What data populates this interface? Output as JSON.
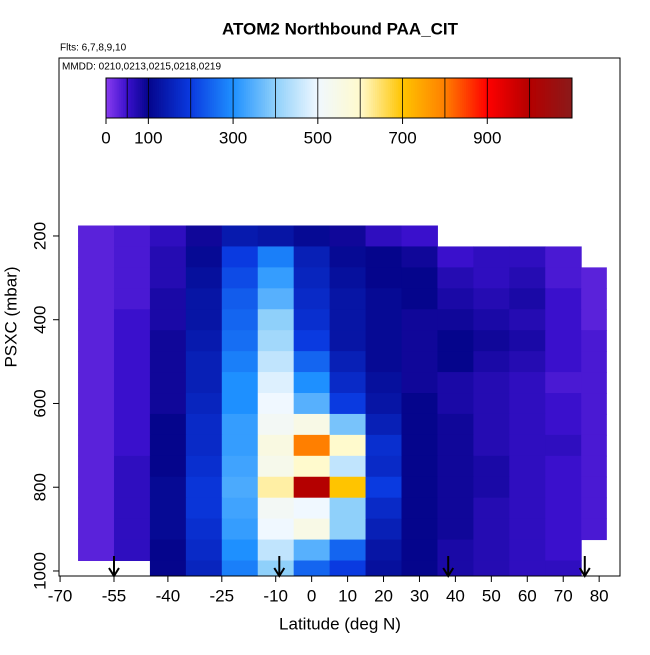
{
  "chart_data": {
    "type": "heatmap",
    "title": "ATOM2 Northbound PAA_CIT",
    "subtitle": "Flts: 6,7,8,9,10",
    "annotation": "MMDD: 0210,0213,0215,0218,0219",
    "xlabel": "Latitude (deg N)",
    "ylabel": "PSXC (mbar)",
    "xlim": [
      -70.3,
      85.8
    ],
    "ylim": [
      -225,
      1012
    ],
    "xticks": [
      -70,
      -55,
      -40,
      -25,
      -10,
      0,
      10,
      20,
      30,
      40,
      50,
      60,
      70,
      80
    ],
    "yticks": [
      200,
      400,
      600,
      800,
      1000
    ],
    "x_bins": [
      -65,
      -55,
      -45,
      -35,
      -25,
      -15,
      -5,
      5,
      15,
      25,
      35,
      45,
      55,
      65,
      75,
      82
    ],
    "y_bins": [
      175,
      225,
      275,
      325,
      375,
      425,
      475,
      525,
      575,
      625,
      675,
      725,
      775,
      825,
      875,
      925,
      975,
      1012
    ],
    "z": [
      [
        30,
        40,
        60,
        90,
        140,
        130,
        110,
        90,
        60,
        50,
        null,
        null,
        null,
        null,
        null
      ],
      [
        30,
        40,
        70,
        110,
        200,
        280,
        150,
        110,
        100,
        90,
        50,
        60,
        60,
        40,
        null
      ],
      [
        30,
        40,
        70,
        120,
        220,
        320,
        160,
        120,
        100,
        100,
        70,
        60,
        70,
        40,
        30
      ],
      [
        30,
        40,
        80,
        130,
        240,
        350,
        170,
        130,
        110,
        100,
        80,
        70,
        80,
        50,
        30
      ],
      [
        30,
        50,
        80,
        130,
        250,
        400,
        180,
        130,
        110,
        90,
        90,
        80,
        70,
        50,
        30
      ],
      [
        30,
        50,
        90,
        140,
        260,
        420,
        200,
        130,
        110,
        90,
        100,
        90,
        80,
        50,
        40
      ],
      [
        30,
        50,
        90,
        150,
        280,
        450,
        250,
        150,
        110,
        90,
        100,
        80,
        70,
        50,
        40
      ],
      [
        30,
        50,
        90,
        150,
        300,
        480,
        300,
        170,
        120,
        90,
        80,
        70,
        60,
        40,
        40
      ],
      [
        30,
        50,
        90,
        160,
        300,
        500,
        350,
        200,
        130,
        100,
        80,
        70,
        60,
        50,
        40
      ],
      [
        30,
        50,
        100,
        170,
        320,
        520,
        550,
        380,
        150,
        100,
        90,
        70,
        60,
        50,
        40
      ],
      [
        30,
        50,
        100,
        170,
        320,
        560,
        800,
        600,
        180,
        100,
        90,
        70,
        60,
        60,
        40
      ],
      [
        30,
        60,
        100,
        180,
        330,
        540,
        600,
        450,
        170,
        100,
        90,
        80,
        60,
        50,
        40
      ],
      [
        30,
        60,
        110,
        190,
        340,
        620,
        1000,
        700,
        200,
        100,
        90,
        80,
        60,
        50,
        40
      ],
      [
        30,
        60,
        110,
        190,
        330,
        520,
        500,
        400,
        170,
        100,
        90,
        70,
        60,
        50,
        40
      ],
      [
        30,
        60,
        110,
        180,
        320,
        500,
        550,
        400,
        150,
        100,
        90,
        70,
        60,
        50,
        40
      ],
      [
        30,
        60,
        100,
        170,
        300,
        450,
        350,
        250,
        130,
        100,
        80,
        70,
        60,
        50,
        null
      ],
      [
        null,
        null,
        100,
        160,
        280,
        400,
        250,
        200,
        120,
        100,
        80,
        70,
        60,
        60,
        null
      ]
    ],
    "colorbar_lim": [
      0,
      1100
    ],
    "colorbar_ticks": [
      0,
      100,
      300,
      500,
      700,
      900
    ],
    "color_stops": [
      [
        0,
        "#8a3cf0"
      ],
      [
        50,
        "#3a10cc"
      ],
      [
        100,
        "#05058c"
      ],
      [
        200,
        "#0a3ae0"
      ],
      [
        300,
        "#1e90ff"
      ],
      [
        400,
        "#8fd0fa"
      ],
      [
        500,
        "#f0f8ff"
      ],
      [
        600,
        "#fffacd"
      ],
      [
        700,
        "#ffc400"
      ],
      [
        800,
        "#ff7f00"
      ],
      [
        900,
        "#ff0000"
      ],
      [
        1000,
        "#b40000"
      ],
      [
        1100,
        "#8b1a1a"
      ]
    ],
    "flight_markers": [
      -55,
      -9,
      38,
      76
    ]
  }
}
